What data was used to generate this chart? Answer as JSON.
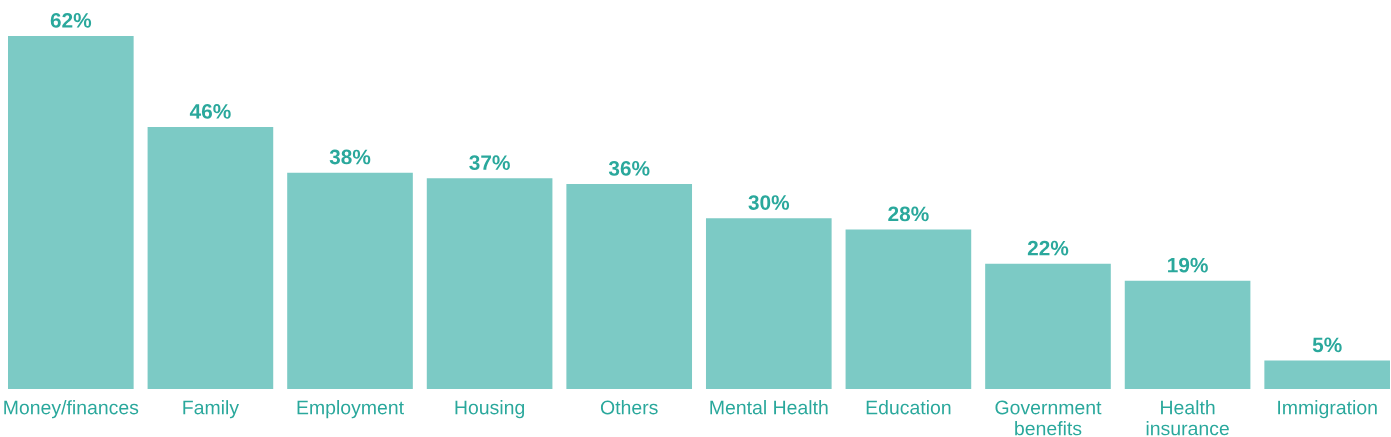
{
  "chart_data": {
    "type": "bar",
    "categories": [
      "Money/finances",
      "Family",
      "Employment",
      "Housing",
      "Others",
      "Mental Health",
      "Education",
      "Government\nbenefits",
      "Health\ninsurance",
      "Immigration"
    ],
    "values": [
      62,
      46,
      38,
      37,
      36,
      30,
      28,
      22,
      19,
      5
    ],
    "value_labels": [
      "62%",
      "46%",
      "38%",
      "37%",
      "36%",
      "30%",
      "28%",
      "22%",
      "19%",
      "5%"
    ],
    "color": "#7ccac5",
    "grid": false,
    "legend": false
  }
}
